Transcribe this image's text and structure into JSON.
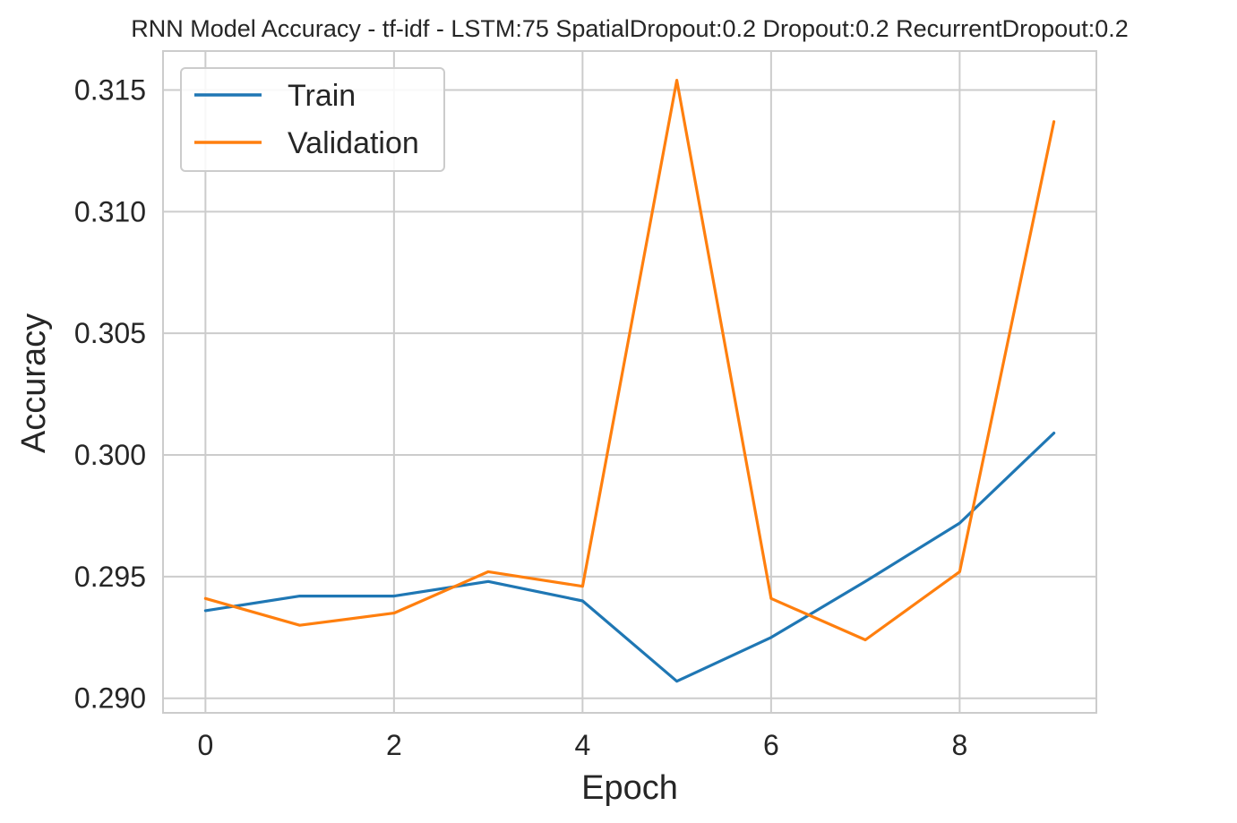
{
  "chart_data": {
    "type": "line",
    "title": "RNN Model Accuracy - tf-idf - LSTM:75 SpatialDropout:0.2 Dropout:0.2 RecurrentDropout:0.2",
    "xlabel": "Epoch",
    "ylabel": "Accuracy",
    "x": [
      0,
      1,
      2,
      3,
      4,
      5,
      6,
      7,
      8,
      9
    ],
    "xlim": [
      -0.45,
      9.45
    ],
    "ylim": [
      0.2894,
      0.3166
    ],
    "xticks": [
      "0",
      "2",
      "4",
      "6",
      "8"
    ],
    "xtick_values": [
      0,
      2,
      4,
      6,
      8
    ],
    "yticks": [
      "0.290",
      "0.295",
      "0.300",
      "0.305",
      "0.310",
      "0.315"
    ],
    "ytick_values": [
      0.29,
      0.295,
      0.3,
      0.305,
      0.31,
      0.315
    ],
    "grid": true,
    "legend_position": "top-left",
    "series": [
      {
        "name": "Train",
        "color": "#1f77b4",
        "values": [
          0.2936,
          0.2942,
          0.2942,
          0.2948,
          0.294,
          0.2907,
          0.2925,
          0.2948,
          0.2972,
          0.3009
        ]
      },
      {
        "name": "Validation",
        "color": "#ff7f0e",
        "values": [
          0.2941,
          0.293,
          0.2935,
          0.2952,
          0.2946,
          0.3154,
          0.2941,
          0.2924,
          0.2952,
          0.3137
        ]
      }
    ]
  }
}
